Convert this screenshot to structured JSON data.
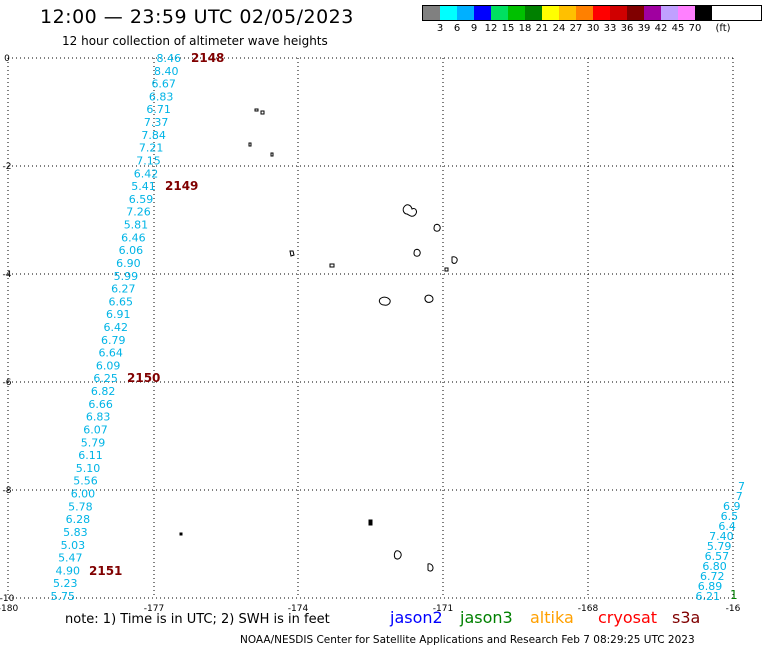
{
  "title": "12:00 — 23:59 UTC 02/05/2023",
  "subtitle": "12 hour collection of altimeter wave heights",
  "legend": {
    "unit": "(ft)",
    "colors": [
      "#808080",
      "#00ffff",
      "#00b0ff",
      "#0000ff",
      "#00e060",
      "#00c000",
      "#008000",
      "#ffff00",
      "#ffc000",
      "#ff8000",
      "#ff0000",
      "#d00000",
      "#800000",
      "#a000a0",
      "#c0a0ff",
      "#ff80ff",
      "#000000"
    ],
    "labels": [
      "3",
      "6",
      "9",
      "12",
      "15",
      "18",
      "21",
      "24",
      "27",
      "30",
      "33",
      "36",
      "39",
      "42",
      "45",
      "70"
    ]
  },
  "axes": {
    "x_ticks": [
      "-180",
      "-177",
      "-174",
      "-171",
      "-168",
      "-16"
    ],
    "y_ticks": [
      "0",
      "-2",
      "-4",
      "-6",
      "-8",
      "-10"
    ]
  },
  "passes": [
    {
      "label": "2148",
      "color": "#800000"
    },
    {
      "label": "2149",
      "color": "#800000"
    },
    {
      "label": "2150",
      "color": "#800000"
    },
    {
      "label": "2151",
      "color": "#800000"
    }
  ],
  "track_main": {
    "color": "#00b4e6",
    "values": [
      "8.46",
      "8.40",
      "6.67",
      "6.83",
      "6.71",
      "7.37",
      "7.84",
      "7.21",
      "7.15",
      "6.42",
      "5.41",
      "6.59",
      "7.26",
      "5.81",
      "6.46",
      "6.06",
      "6.90",
      "5.99",
      "6.27",
      "6.65",
      "6.91",
      "6.42",
      "6.79",
      "6.64",
      "6.09",
      "6.25",
      "6.82",
      "6.66",
      "6.83",
      "6.07",
      "5.79",
      "6.11",
      "5.10",
      "5.56",
      "6.00",
      "5.78",
      "6.28",
      "5.83",
      "5.03",
      "5.47",
      "4.90",
      "5.23",
      "5.75"
    ]
  },
  "track_right": {
    "color": "#00b4e6",
    "values": [
      "7",
      "7",
      "6.9",
      "6.5",
      "6.4",
      "7.40",
      "5.79",
      "6.57",
      "6.80",
      "6.72",
      "6.89",
      "6.21"
    ]
  },
  "track_right_marker": "1",
  "note": "note:  1) Time is in UTC;  2) SWH is in feet",
  "missions": [
    {
      "name": "jason2",
      "color": "#0000ff"
    },
    {
      "name": "jason3",
      "color": "#008000"
    },
    {
      "name": "altika",
      "color": "#ffa000"
    },
    {
      "name": "cryosat",
      "color": "#ff0000"
    },
    {
      "name": "s3a",
      "color": "#800000"
    }
  ],
  "credit": "NOAA/NESDIS Center for Satellite Applications and Research    Feb  7 08:29:25 UTC 2023"
}
